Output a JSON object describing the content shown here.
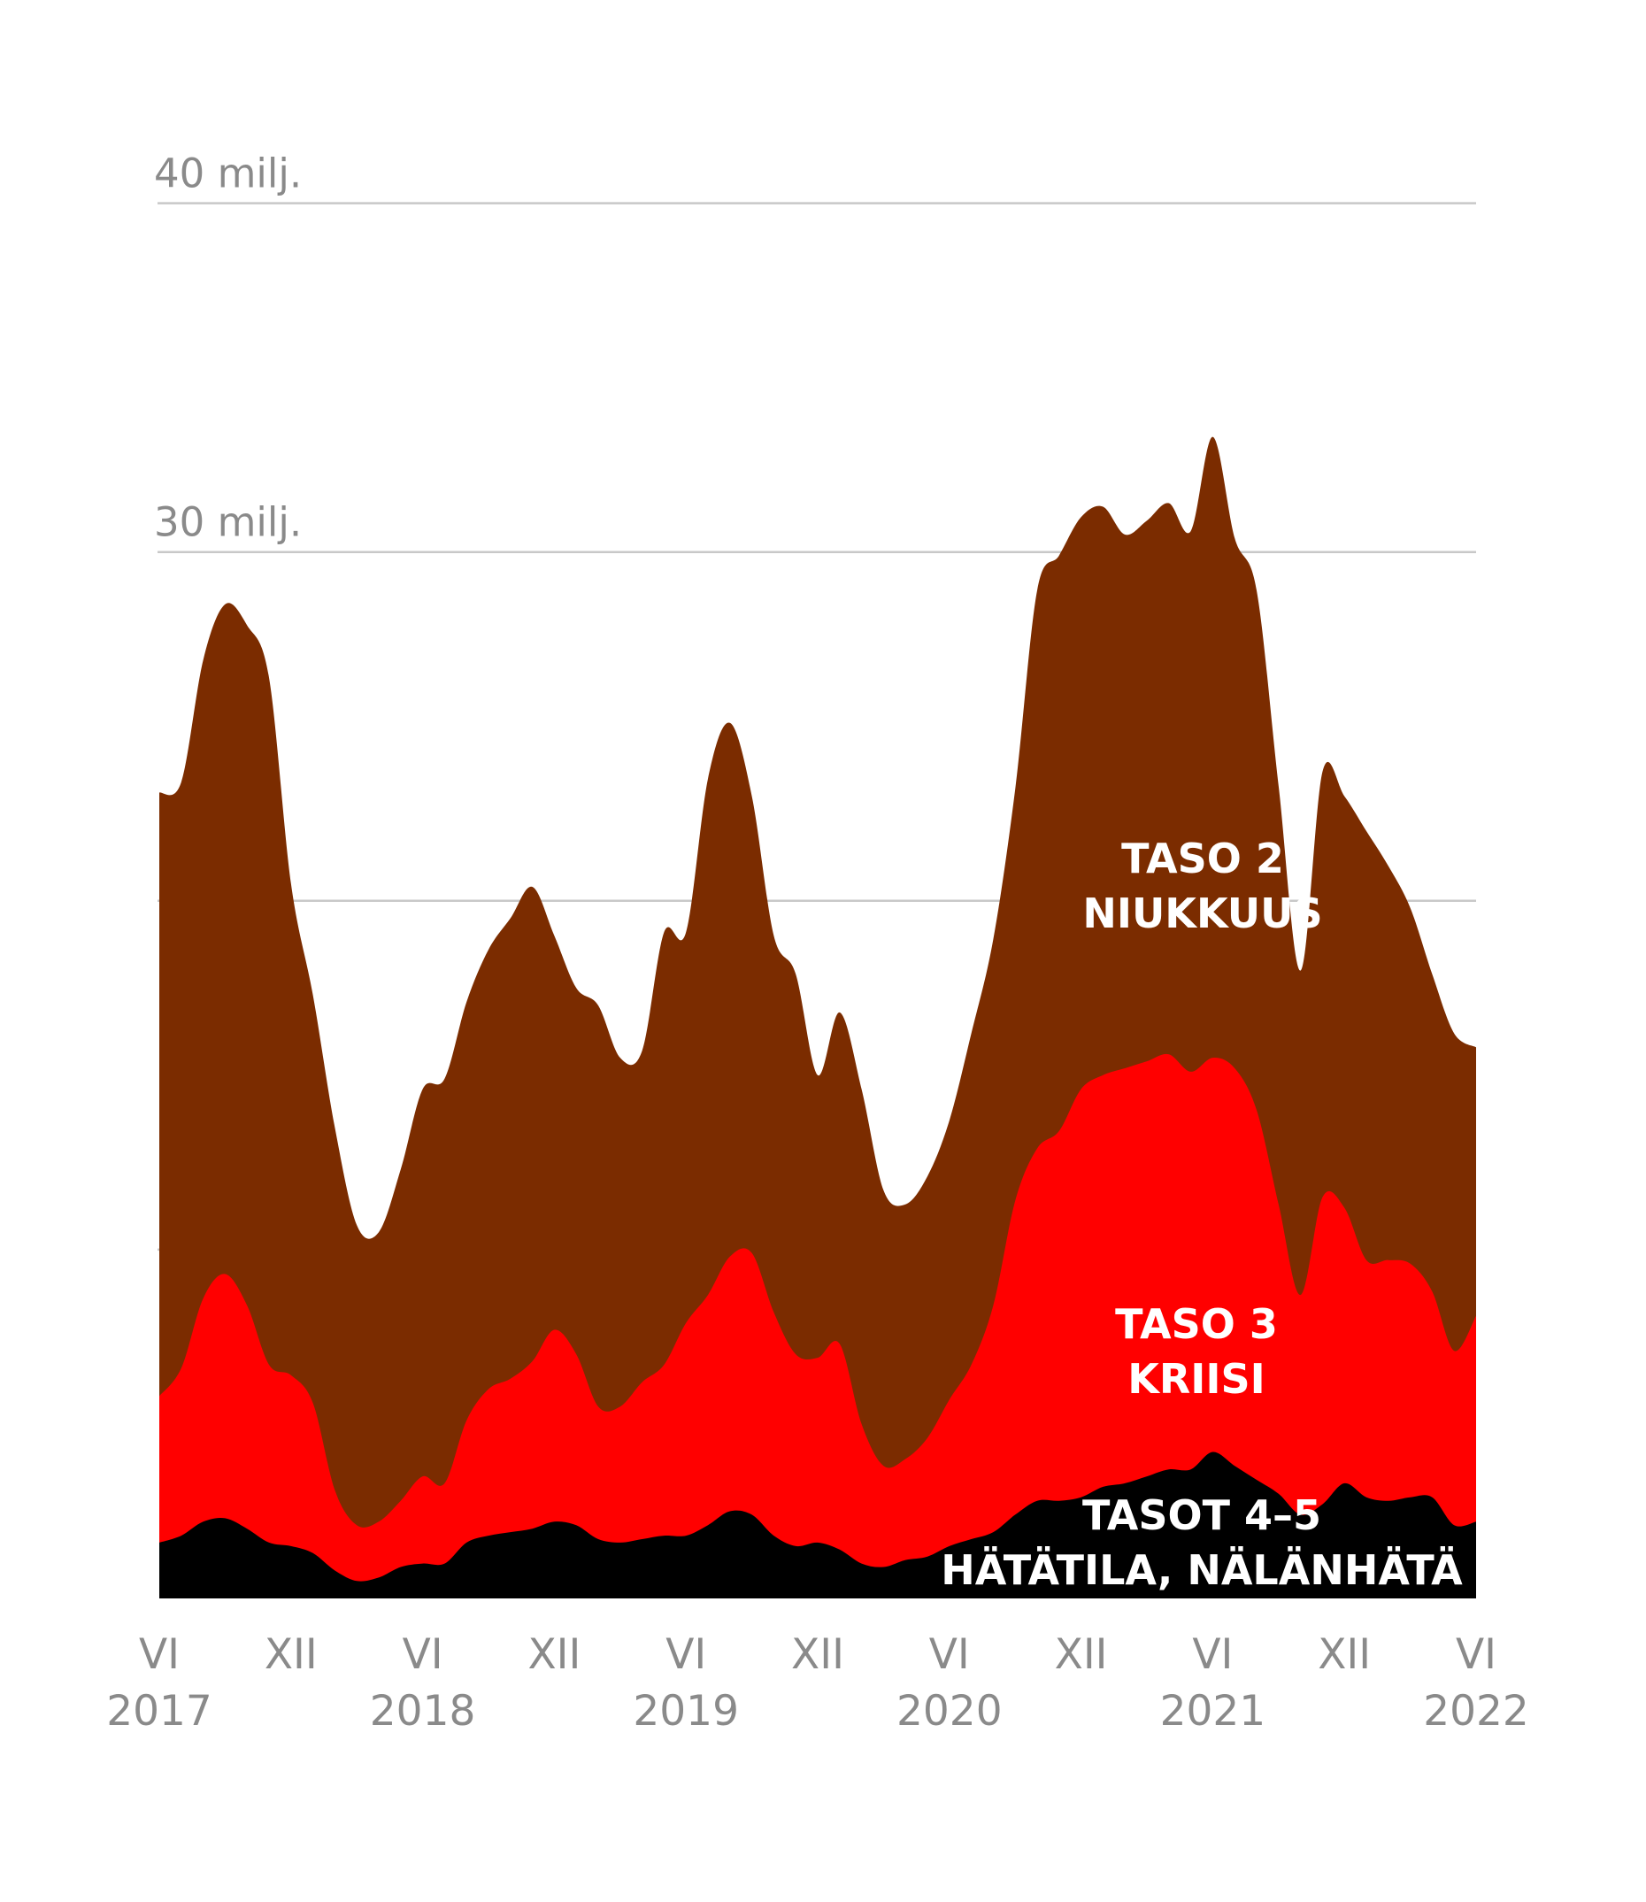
{
  "chart_data": {
    "type": "area",
    "stacked": true,
    "title": "",
    "xlabel": "",
    "ylabel": "",
    "ylim": [
      0,
      43
    ],
    "yticks": [
      {
        "value": 40,
        "label": "40 milj."
      },
      {
        "value": 30,
        "label": "30 milj."
      },
      {
        "value": 20,
        "label": ""
      },
      {
        "value": 10,
        "label": ""
      }
    ],
    "grid": true,
    "xticks": [
      {
        "x": 0,
        "line1": "VI",
        "line2": "2017"
      },
      {
        "x": 6,
        "line1": "XII",
        "line2": ""
      },
      {
        "x": 12,
        "line1": "VI",
        "line2": "2018"
      },
      {
        "x": 18,
        "line1": "XII",
        "line2": ""
      },
      {
        "x": 24,
        "line1": "VI",
        "line2": "2019"
      },
      {
        "x": 30,
        "line1": "XII",
        "line2": ""
      },
      {
        "x": 36,
        "line1": "VI",
        "line2": "2020"
      },
      {
        "x": 42,
        "line1": "XII",
        "line2": ""
      },
      {
        "x": 48,
        "line1": "VI",
        "line2": "2021"
      },
      {
        "x": 54,
        "line1": "XII",
        "line2": ""
      },
      {
        "x": 60,
        "line1": "VI",
        "line2": "2022"
      }
    ],
    "x": [
      0,
      1,
      2,
      3,
      4,
      5,
      6,
      7,
      8,
      9,
      10,
      11,
      12,
      13,
      14,
      15,
      16,
      17,
      18,
      19,
      20,
      21,
      22,
      23,
      24,
      25,
      26,
      27,
      28,
      29,
      30,
      31,
      32,
      33,
      34,
      35,
      36,
      37,
      38,
      39,
      40,
      41,
      42,
      43,
      44,
      45,
      46,
      47,
      48,
      49,
      50,
      51,
      52,
      53,
      54,
      55,
      56,
      57,
      58,
      59,
      60
    ],
    "series": [
      {
        "name": "",
        "color": "#000000",
        "values": [
          1.6,
          1.8,
          2.2,
          2.3,
          2.0,
          1.6,
          1.5,
          1.3,
          0.8,
          0.5,
          0.6,
          0.9,
          1.0,
          1.0,
          1.6,
          1.8,
          1.9,
          2.0,
          2.2,
          2.1,
          1.7,
          1.6,
          1.7,
          1.8,
          1.8,
          2.1,
          2.5,
          2.4,
          1.8,
          1.5,
          1.6,
          1.4,
          1.0,
          0.9,
          1.1,
          1.2,
          1.5,
          1.7,
          1.9,
          2.4,
          2.8,
          2.8,
          2.9,
          3.2,
          3.3,
          3.5,
          3.7,
          3.7,
          4.2,
          3.8,
          3.4,
          3.0,
          2.4,
          2.7,
          3.3,
          2.9,
          2.8,
          2.9,
          2.9,
          2.1,
          2.2
        ]
      },
      {
        "name": "",
        "color": "#ff0000",
        "values": [
          4.2,
          4.8,
          6.4,
          7.0,
          6.4,
          5.1,
          4.9,
          4.3,
          2.3,
          1.6,
          1.6,
          1.9,
          2.5,
          2.3,
          3.5,
          4.2,
          4.4,
          4.8,
          5.5,
          4.9,
          3.8,
          3.9,
          4.5,
          4.9,
          6.1,
          6.6,
          7.3,
          7.5,
          6.4,
          5.5,
          5.3,
          5.9,
          4.0,
          2.9,
          2.9,
          3.4,
          4.2,
          5.0,
          6.5,
          9.0,
          10.1,
          10.6,
          11.7,
          11.8,
          11.9,
          11.9,
          11.9,
          11.4,
          11.3,
          11.4,
          10.6,
          8.3,
          6.3,
          8.8,
          7.9,
          6.8,
          6.9,
          6.7,
          5.9,
          5.0,
          5.9
        ]
      },
      {
        "name": "TASO 2",
        "color": "#7b2c00",
        "values": [
          17.3,
          16.8,
          18.3,
          19.2,
          19.5,
          19.7,
          14.1,
          11.7,
          10.4,
          8.6,
          8.3,
          9.5,
          11.1,
          11.6,
          12.0,
          12.6,
          13.2,
          13.6,
          11.3,
          10.5,
          11.5,
          10.0,
          9.5,
          12.4,
          11.2,
          14.8,
          15.3,
          13.1,
          10.8,
          10.9,
          8.1,
          9.5,
          9.6,
          7.9,
          7.3,
          7.5,
          8.0,
          9.5,
          10.5,
          11.8,
          16.0,
          16.5,
          16.4,
          16.3,
          15.3,
          15.5,
          15.8,
          15.5,
          17.8,
          15.2,
          14.9,
          12.0,
          9.3,
          12.2,
          11.8,
          12.3,
          11.3,
          10.2,
          9.1,
          9.1,
          7.7
        ]
      }
    ],
    "labels": [
      {
        "series": 2,
        "line1": "TASO 2",
        "line2": "NIUKKUUS"
      },
      {
        "series": 1,
        "line1": "TASO 3",
        "line2": "KRIISI"
      },
      {
        "series": 0,
        "line1": "TASOT 4–5",
        "line2": "HÄTÄTILA, NÄLÄNHÄTÄ"
      }
    ]
  }
}
